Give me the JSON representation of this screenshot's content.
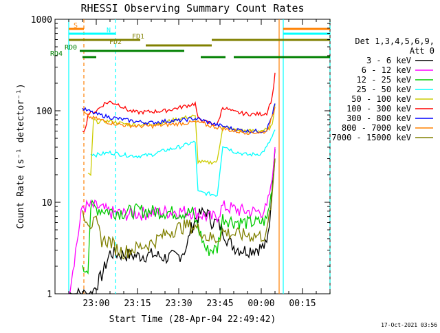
{
  "chart_data": {
    "type": "line",
    "title": "RHESSI Observing Summary Count Rates",
    "xlabel": "Start Time (28-Apr-04 22:49:42)",
    "ylabel": "Count Rate (s⁻¹ detector⁻¹)",
    "y_scale": "log",
    "ylim": [
      1,
      1000
    ],
    "xlim_minutes": [
      -10,
      37
    ],
    "x_ticks": [
      {
        "label": "23:00",
        "min": 0
      },
      {
        "label": "23:15",
        "min": 15
      },
      {
        "label": "23:30",
        "min": 30
      },
      {
        "label": "23:45",
        "min": 45
      },
      {
        "label": "00:00",
        "min": 60
      },
      {
        "label": "00:15",
        "min": 75
      }
    ],
    "y_ticks": [
      {
        "label": "1",
        "value": 1
      },
      {
        "label": "10",
        "value": 10
      },
      {
        "label": "100",
        "value": 100
      },
      {
        "label": "1000",
        "value": 1000
      }
    ],
    "legend_title_line1": "Det 1,3,4,5,6,9,",
    "legend_title_line2": "Att 0",
    "series": [
      {
        "name": "3 - 6 keV",
        "color": "#000000",
        "points": [
          [
            -10,
            1.0
          ],
          [
            -2,
            1.0
          ],
          [
            -1,
            1.1
          ],
          [
            2,
            1.6
          ],
          [
            5,
            2.8
          ],
          [
            10,
            2.7
          ],
          [
            15,
            2.6
          ],
          [
            20,
            2.7
          ],
          [
            25,
            2.5
          ],
          [
            30,
            2.6
          ],
          [
            33,
            3.2
          ],
          [
            34,
            4.8
          ],
          [
            36,
            6.5
          ],
          [
            38,
            7.5
          ],
          [
            40,
            8.0
          ],
          [
            42,
            6.2
          ],
          [
            44,
            6.0
          ],
          [
            46,
            5.0
          ],
          [
            48,
            3.8
          ],
          [
            50,
            3.3
          ],
          [
            52,
            3.1
          ],
          [
            54,
            3.0
          ],
          [
            57,
            3.1
          ],
          [
            60,
            3.2
          ],
          [
            62,
            3.4
          ],
          [
            63,
            6
          ],
          [
            64,
            15
          ],
          [
            65,
            38
          ]
        ]
      },
      {
        "name": "6 - 12 keV",
        "color": "#ff00ff",
        "points": [
          [
            -10,
            1.0
          ],
          [
            -5,
            9
          ],
          [
            0,
            9
          ],
          [
            5,
            7.8
          ],
          [
            10,
            7.5
          ],
          [
            15,
            7.6
          ],
          [
            20,
            7.7
          ],
          [
            25,
            7.9
          ],
          [
            30,
            8.0
          ],
          [
            35,
            7.9
          ],
          [
            40,
            7.0
          ],
          [
            42,
            6.8
          ],
          [
            44,
            7.2
          ],
          [
            46,
            9.0
          ],
          [
            48,
            8.8
          ],
          [
            50,
            8.5
          ],
          [
            52,
            8.2
          ],
          [
            55,
            8.0
          ],
          [
            58,
            7.9
          ],
          [
            60,
            8.0
          ],
          [
            62,
            8.5
          ],
          [
            64,
            18
          ],
          [
            65,
            40
          ]
        ]
      },
      {
        "name": "12 - 25 keV",
        "color": "#00cc00",
        "points": [
          [
            -5,
            1.8
          ],
          [
            -3,
            2.0
          ],
          [
            -2,
            9
          ],
          [
            0,
            8.6
          ],
          [
            5,
            8.0
          ],
          [
            10,
            7.8
          ],
          [
            15,
            8.2
          ],
          [
            20,
            8.0
          ],
          [
            25,
            7.9
          ],
          [
            30,
            7.7
          ],
          [
            35,
            7.8
          ],
          [
            40,
            3.0
          ],
          [
            44,
            3.1
          ],
          [
            46,
            6.8
          ],
          [
            50,
            6.2
          ],
          [
            55,
            6.0
          ],
          [
            60,
            6.1
          ],
          [
            62,
            6.5
          ],
          [
            64,
            14
          ],
          [
            65,
            30
          ]
        ]
      },
      {
        "name": "25 - 50 keV",
        "color": "#00ffff",
        "points": [
          [
            -2,
            34
          ],
          [
            0,
            33
          ],
          [
            5,
            35
          ],
          [
            10,
            33
          ],
          [
            15,
            32
          ],
          [
            20,
            33
          ],
          [
            25,
            37
          ],
          [
            30,
            40
          ],
          [
            35,
            45
          ],
          [
            36,
            45
          ],
          [
            37,
            13
          ],
          [
            40,
            12.5
          ],
          [
            44,
            12.0
          ],
          [
            46,
            42
          ],
          [
            50,
            36
          ],
          [
            55,
            33
          ],
          [
            60,
            34
          ],
          [
            62,
            40
          ],
          [
            64,
            52
          ],
          [
            65,
            62
          ]
        ]
      },
      {
        "name": "50 - 100 keV",
        "color": "#cccc00",
        "points": [
          [
            -3,
            20
          ],
          [
            -2,
            20
          ],
          [
            -1,
            80
          ],
          [
            0,
            76
          ],
          [
            5,
            77
          ],
          [
            10,
            72
          ],
          [
            15,
            70
          ],
          [
            20,
            72
          ],
          [
            25,
            75
          ],
          [
            30,
            82
          ],
          [
            35,
            87
          ],
          [
            36,
            86
          ],
          [
            37,
            28
          ],
          [
            40,
            27
          ],
          [
            44,
            28
          ],
          [
            46,
            68
          ],
          [
            50,
            62
          ],
          [
            55,
            60
          ],
          [
            60,
            61
          ],
          [
            62,
            62
          ],
          [
            64,
            68
          ],
          [
            65,
            120
          ]
        ]
      },
      {
        "name": "100 - 300 keV",
        "color": "#ff0000",
        "points": [
          [
            -5,
            62
          ],
          [
            -4,
            62
          ],
          [
            -3,
            92
          ],
          [
            0,
            100
          ],
          [
            3,
            120
          ],
          [
            5,
            125
          ],
          [
            8,
            118
          ],
          [
            12,
            100
          ],
          [
            15,
            96
          ],
          [
            20,
            98
          ],
          [
            25,
            100
          ],
          [
            30,
            108
          ],
          [
            35,
            118
          ],
          [
            36,
            120
          ],
          [
            37,
            82
          ],
          [
            40,
            75
          ],
          [
            44,
            70
          ],
          [
            46,
            110
          ],
          [
            50,
            97
          ],
          [
            55,
            92
          ],
          [
            60,
            92
          ],
          [
            62,
            95
          ],
          [
            64,
            140
          ],
          [
            65,
            260
          ]
        ]
      },
      {
        "name": "300 - 800 keV",
        "color": "#0000ff",
        "points": [
          [
            -5,
            105
          ],
          [
            -3,
            100
          ],
          [
            0,
            92
          ],
          [
            5,
            85
          ],
          [
            10,
            80
          ],
          [
            15,
            76
          ],
          [
            20,
            74
          ],
          [
            25,
            77
          ],
          [
            30,
            78
          ],
          [
            35,
            82
          ],
          [
            36,
            82
          ],
          [
            38,
            80
          ],
          [
            40,
            76
          ],
          [
            44,
            70
          ],
          [
            46,
            68
          ],
          [
            50,
            63
          ],
          [
            55,
            60
          ],
          [
            60,
            60
          ],
          [
            62,
            62
          ],
          [
            64,
            90
          ],
          [
            65,
            120
          ]
        ]
      },
      {
        "name": "800 - 7000 keV",
        "color": "#ff8000",
        "points": [
          [
            -5,
            100
          ],
          [
            -3,
            86
          ],
          [
            0,
            82
          ],
          [
            5,
            74
          ],
          [
            10,
            70
          ],
          [
            15,
            68
          ],
          [
            20,
            68
          ],
          [
            25,
            70
          ],
          [
            30,
            72
          ],
          [
            35,
            75
          ],
          [
            36,
            75
          ],
          [
            38,
            74
          ],
          [
            40,
            70
          ],
          [
            44,
            66
          ],
          [
            46,
            64
          ],
          [
            50,
            60
          ],
          [
            55,
            58
          ],
          [
            60,
            58
          ],
          [
            62,
            60
          ],
          [
            64,
            85
          ],
          [
            65,
            110
          ]
        ]
      },
      {
        "name": "7000 - 15000 keV",
        "color": "#808000",
        "points": [
          [
            -5,
            8
          ],
          [
            -2,
            5.8
          ],
          [
            0,
            6.0
          ],
          [
            2,
            3.9
          ],
          [
            5,
            3.8
          ],
          [
            8,
            3.0
          ],
          [
            10,
            2.9
          ],
          [
            15,
            3.2
          ],
          [
            20,
            3.6
          ],
          [
            25,
            4.5
          ],
          [
            28,
            5.0
          ],
          [
            30,
            5.3
          ],
          [
            33,
            5.6
          ],
          [
            35,
            5.5
          ],
          [
            38,
            5.0
          ],
          [
            40,
            4.2
          ],
          [
            44,
            4.0
          ],
          [
            46,
            4.8
          ],
          [
            50,
            4.5
          ],
          [
            55,
            4.4
          ],
          [
            60,
            4.3
          ],
          [
            62,
            4.5
          ],
          [
            64,
            12
          ],
          [
            65,
            30
          ]
        ]
      }
    ],
    "flag_bars": [
      {
        "label": "S",
        "color": "#ff8000",
        "segments": [
          [
            -10,
            -4.5
          ],
          [
            68,
            87
          ]
        ]
      },
      {
        "label": "N",
        "color": "#00ffff",
        "segments": [
          [
            -10,
            7
          ],
          [
            68,
            87
          ]
        ]
      },
      {
        "label": "FD1",
        "color": "#808000",
        "segments": [
          [
            -10,
            16
          ],
          [
            42,
            87
          ]
        ]
      },
      {
        "label": "FD2",
        "color": "#808000",
        "segments": [
          [
            18,
            42
          ]
        ]
      },
      {
        "label": "RD0",
        "color": "#008000",
        "segments": [
          [
            -6,
            32
          ]
        ]
      },
      {
        "label": "RD4",
        "color": "#008000",
        "segments": [
          [
            -5,
            0
          ],
          [
            38,
            47
          ],
          [
            50,
            87
          ]
        ]
      }
    ],
    "vertical_markers": [
      {
        "color": "#00ffff",
        "style": "solid",
        "x_min": -10
      },
      {
        "color": "#ff8000",
        "style": "dashed",
        "x_min": -4.5
      },
      {
        "color": "#00ffff",
        "style": "dashed",
        "x_min": 7
      },
      {
        "color": "#ff8000",
        "style": "solid",
        "x_min": 66.5
      },
      {
        "color": "#00ffff",
        "style": "solid",
        "x_min": 68
      },
      {
        "color": "#ff8000",
        "style": "dashed",
        "x_min": 87
      },
      {
        "color": "#00ffff",
        "style": "dashed",
        "x_min": 87.3
      }
    ],
    "grid": false,
    "legend_placement": "right",
    "timestamp": "17-Oct-2021 03:56"
  }
}
